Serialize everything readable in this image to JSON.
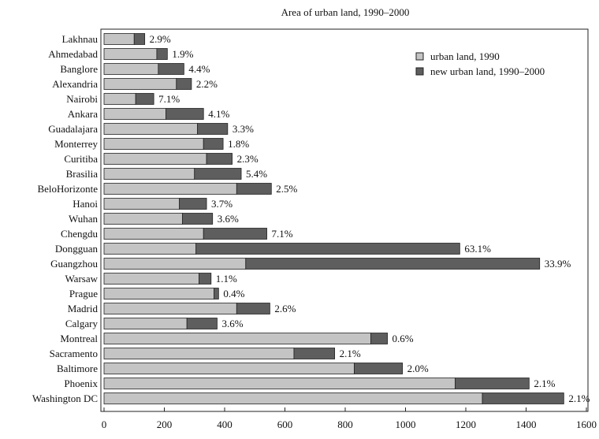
{
  "chart_data": {
    "type": "bar",
    "orientation": "horizontal",
    "stacked": true,
    "title": "Area of urban land, 1990–2000",
    "xlim": [
      0,
      1600
    ],
    "xticks": [
      0,
      200,
      400,
      600,
      800,
      1000,
      1200,
      1400,
      1600
    ],
    "categories": [
      "Lakhnau",
      "Ahmedabad",
      "Banglore",
      "Alexandria",
      "Nairobi",
      "Ankara",
      "Guadalajara",
      "Monterrey",
      "Curitiba",
      "Brasilia",
      "BeloHorizonte",
      "Hanoi",
      "Wuhan",
      "Chengdu",
      "Dongguan",
      "Guangzhou",
      "Warsaw",
      "Prague",
      "Madrid",
      "Calgary",
      "Montreal",
      "Sacramento",
      "Baltimore",
      "Phoenix",
      "Washington DC"
    ],
    "series": [
      {
        "name": "urban land, 1990",
        "color": "#c4c4c4",
        "values": [
          100,
          175,
          180,
          240,
          105,
          205,
          310,
          330,
          340,
          300,
          440,
          250,
          260,
          330,
          305,
          470,
          315,
          365,
          440,
          275,
          885,
          630,
          830,
          1165,
          1255
        ]
      },
      {
        "name": "new urban land, 1990–2000",
        "color": "#5e5e5e",
        "values": [
          35,
          35,
          85,
          50,
          60,
          125,
          100,
          65,
          85,
          155,
          115,
          90,
          100,
          210,
          875,
          975,
          40,
          15,
          110,
          100,
          55,
          135,
          160,
          245,
          270
        ]
      }
    ],
    "data_labels": [
      "2.9%",
      "1.9%",
      "4.4%",
      "2.2%",
      "7.1%",
      "4.1%",
      "3.3%",
      "1.8%",
      "2.3%",
      "5.4%",
      "2.5%",
      "3.7%",
      "3.6%",
      "7.1%",
      "63.1%",
      "33.9%",
      "1.1%",
      "0.4%",
      "2.6%",
      "3.6%",
      "0.6%",
      "2.1%",
      "2.0%",
      "2.1%",
      "2.1%"
    ],
    "legend_position": "top-right",
    "grid": false
  }
}
